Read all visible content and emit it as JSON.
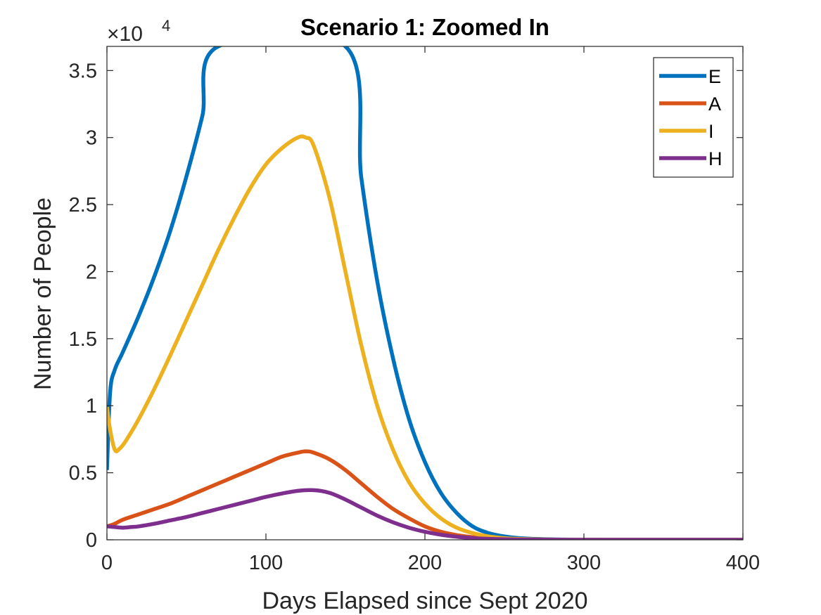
{
  "chart_data": {
    "type": "line",
    "title": "Scenario 1: Zoomed In",
    "xlabel": "Days Elapsed since Sept 2020",
    "ylabel": "Number of People",
    "exponent_base": "×10",
    "exponent_power": "4",
    "xlim": [
      0,
      400
    ],
    "ylim": [
      0,
      36800
    ],
    "xticks": [
      0,
      100,
      200,
      300,
      400
    ],
    "xtick_labels": [
      "0",
      "100",
      "200",
      "300",
      "400"
    ],
    "yticks": [
      0,
      5000,
      10000,
      15000,
      20000,
      25000,
      30000,
      35000
    ],
    "ytick_labels": [
      "0",
      "0.5",
      "1",
      "1.5",
      "2",
      "2.5",
      "3",
      "3.5"
    ],
    "grid": false,
    "legend_position": "top-right",
    "series": [
      {
        "name": "E",
        "color": "#0072BD",
        "x": [
          0,
          2,
          5,
          10,
          20,
          30,
          40,
          50,
          60,
          70,
          150,
          160,
          170,
          180,
          190,
          200,
          210,
          220,
          230,
          240,
          250,
          260,
          280,
          300,
          350,
          400
        ],
        "y": [
          5200,
          11000,
          12700,
          14000,
          16700,
          19700,
          23100,
          27100,
          31600,
          36800,
          36800,
          27000,
          19300,
          13500,
          9000,
          5800,
          3500,
          2000,
          1000,
          500,
          250,
          120,
          30,
          5,
          0,
          0
        ]
      },
      {
        "name": "A",
        "color": "#D95319",
        "x": [
          0,
          5,
          10,
          20,
          30,
          40,
          50,
          60,
          70,
          80,
          90,
          100,
          110,
          120,
          125,
          130,
          140,
          150,
          160,
          170,
          180,
          190,
          200,
          210,
          220,
          230,
          240,
          260,
          300,
          350,
          400
        ],
        "y": [
          1000,
          1200,
          1500,
          1900,
          2300,
          2700,
          3200,
          3700,
          4200,
          4700,
          5200,
          5700,
          6200,
          6500,
          6600,
          6500,
          6000,
          5200,
          4200,
          3200,
          2300,
          1600,
          1000,
          600,
          350,
          200,
          100,
          30,
          2,
          0,
          0
        ]
      },
      {
        "name": "I",
        "color": "#EDB120",
        "x": [
          0,
          2,
          5,
          8,
          12,
          20,
          30,
          40,
          50,
          60,
          70,
          80,
          90,
          100,
          110,
          120,
          125,
          130,
          140,
          150,
          160,
          170,
          180,
          190,
          200,
          210,
          220,
          230,
          240,
          250,
          260,
          280,
          300,
          350,
          400
        ],
        "y": [
          9900,
          8200,
          6700,
          6800,
          7400,
          9000,
          11300,
          13800,
          16400,
          19000,
          21600,
          24000,
          26200,
          28000,
          29200,
          30000,
          30000,
          29400,
          25500,
          20000,
          14500,
          10000,
          6700,
          4300,
          2700,
          1600,
          900,
          500,
          250,
          120,
          60,
          15,
          3,
          0,
          0
        ]
      },
      {
        "name": "H",
        "color": "#7E2F8E",
        "x": [
          0,
          5,
          10,
          15,
          20,
          30,
          40,
          50,
          60,
          70,
          80,
          90,
          100,
          110,
          120,
          130,
          140,
          150,
          160,
          170,
          180,
          190,
          200,
          210,
          220,
          230,
          240,
          260,
          300,
          350,
          400
        ],
        "y": [
          1000,
          950,
          900,
          950,
          1000,
          1200,
          1450,
          1700,
          2000,
          2300,
          2600,
          2900,
          3200,
          3450,
          3650,
          3700,
          3500,
          3000,
          2400,
          1800,
          1300,
          900,
          600,
          380,
          230,
          130,
          70,
          20,
          2,
          0,
          0
        ]
      }
    ]
  }
}
